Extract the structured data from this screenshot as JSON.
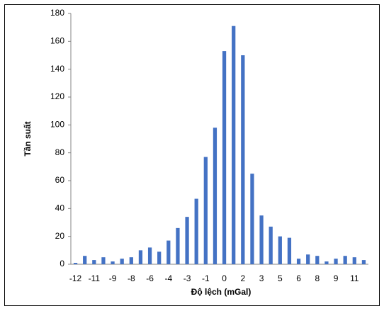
{
  "chart_data": {
    "type": "bar",
    "x_label": "Độ lệch (mGal)",
    "y_label": "Tần suất",
    "categories": [
      "-12",
      null,
      "-11",
      null,
      "-9",
      null,
      "-8",
      null,
      "-6",
      null,
      "-4",
      null,
      "-3",
      null,
      "-1",
      null,
      "0",
      null,
      "2",
      null,
      "3",
      null,
      "5",
      null,
      "6",
      null,
      "8",
      null,
      "9",
      null,
      "11",
      null
    ],
    "values": [
      1,
      6,
      3,
      5,
      2,
      4,
      5,
      10,
      12,
      9,
      17,
      26,
      34,
      47,
      77,
      98,
      153,
      171,
      150,
      65,
      35,
      27,
      20,
      19,
      4,
      7,
      6,
      2,
      4,
      6,
      5,
      3
    ],
    "color": "#4472c4",
    "ylim": [
      0,
      180
    ],
    "yticks": [
      0,
      20,
      40,
      60,
      80,
      100,
      120,
      140,
      160,
      180
    ],
    "grid": false
  }
}
